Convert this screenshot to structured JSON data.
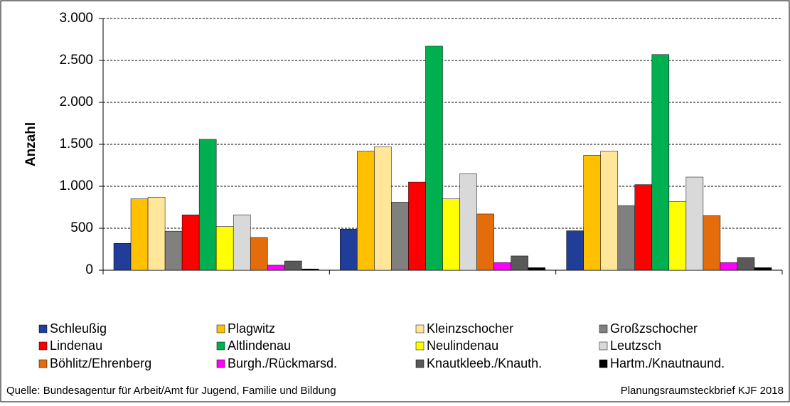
{
  "chart_data": {
    "type": "bar",
    "y_label": "Anzahl",
    "categories": [
      null,
      null,
      null
    ],
    "series": [
      {
        "name": "Schleußig",
        "color": "#1f3d99",
        "values": [
          320,
          490,
          470
        ]
      },
      {
        "name": "Plagwitz",
        "color": "#ffc000",
        "values": [
          850,
          1420,
          1370
        ]
      },
      {
        "name": "Kleinzschocher",
        "color": "#ffe699",
        "values": [
          870,
          1470,
          1420
        ]
      },
      {
        "name": "Großzschocher",
        "color": "#808080",
        "values": [
          465,
          810,
          770
        ]
      },
      {
        "name": "Lindenau",
        "color": "#ff0000",
        "values": [
          660,
          1050,
          1020
        ]
      },
      {
        "name": "Altlindenau",
        "color": "#00b050",
        "values": [
          1560,
          2670,
          2570
        ]
      },
      {
        "name": "Neulindenau",
        "color": "#ffff00",
        "values": [
          520,
          850,
          820
        ]
      },
      {
        "name": "Leutzsch",
        "color": "#d9d9d9",
        "values": [
          660,
          1150,
          1110
        ]
      },
      {
        "name": "Böhlitz/Ehrenberg",
        "color": "#e46c0a",
        "values": [
          390,
          670,
          650
        ]
      },
      {
        "name": "Burgh./Rückmarsd.",
        "color": "#ff00ff",
        "values": [
          60,
          90,
          90
        ]
      },
      {
        "name": "Knautkleeb./Knauth.",
        "color": "#595959",
        "values": [
          110,
          170,
          150
        ]
      },
      {
        "name": "Hartm./Knautnaund.",
        "color": "#000000",
        "values": [
          15,
          30,
          30
        ]
      }
    ],
    "ylim": [
      0,
      3000
    ],
    "yticks": [
      0,
      500,
      {
        "value": 1000,
        "label": "1.000"
      },
      {
        "value": 1500,
        "label": "1.500"
      },
      {
        "value": 2000,
        "label": "2.000"
      },
      {
        "value": 2500,
        "label": "2.500"
      },
      {
        "value": 3000,
        "label": "3.000"
      }
    ],
    "grid": true,
    "legend": "bottom",
    "source": "Quelle: Bundesagentur für Arbeit/Amt für Jugend, Familie und Bildung",
    "credit": "Planungsraumsteckbrief KJF 2018"
  }
}
